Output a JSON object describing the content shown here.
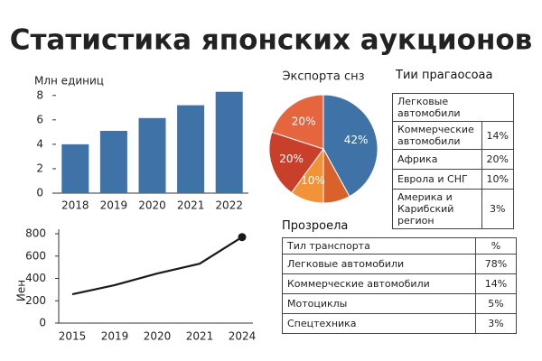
{
  "title": "Статистика японских аукционов",
  "chart_data": [
    {
      "type": "bar",
      "ylabel": "Млн единиц",
      "categories": [
        "2018",
        "2019",
        "2020",
        "2021",
        "2022"
      ],
      "values": [
        4.0,
        5.1,
        6.15,
        7.2,
        8.3
      ],
      "color": "#3f72a6",
      "ylim": [
        0,
        8.5
      ],
      "yticks": [
        0,
        2,
        4,
        6,
        8
      ]
    },
    {
      "type": "line",
      "ylabel": "Иен",
      "categories": [
        "2015",
        "2019",
        "2020",
        "2021",
        "2024"
      ],
      "values": [
        258,
        340,
        444,
        532,
        770
      ],
      "color": "#1a1a1a",
      "ylim": [
        0,
        800
      ],
      "yticks": [
        0,
        200,
        400,
        600,
        800
      ]
    },
    {
      "type": "pie",
      "title": "Экспорта снз",
      "values": [
        42,
        8,
        10,
        20,
        20
      ],
      "value_labels": [
        "42%",
        null,
        "10%",
        "20%",
        "20%"
      ],
      "colors": [
        "#3f72a6",
        "#d9622b",
        "#f2933a",
        "#c9402a",
        "#e5653f"
      ]
    }
  ],
  "tables": [
    {
      "title": "Тии прагаосоаа",
      "rows": [
        [
          "Легковые автомобили"
        ],
        [
          "Коммерческие автомобили",
          "14%"
        ],
        [
          "Африка",
          "20%"
        ],
        [
          "Еврола и СНГ",
          "10%"
        ],
        [
          "Америка и Карибский регион",
          "3%"
        ]
      ]
    },
    {
      "title": "Прозроела",
      "header": [
        "Тил транспорта",
        "%"
      ],
      "rows": [
        [
          "Легковые автомобили",
          "78%"
        ],
        [
          "Коммерческие автомобили",
          "14%"
        ],
        [
          "Мотоциклы",
          "5%"
        ],
        [
          "Спецтехника",
          "3%"
        ]
      ]
    }
  ]
}
